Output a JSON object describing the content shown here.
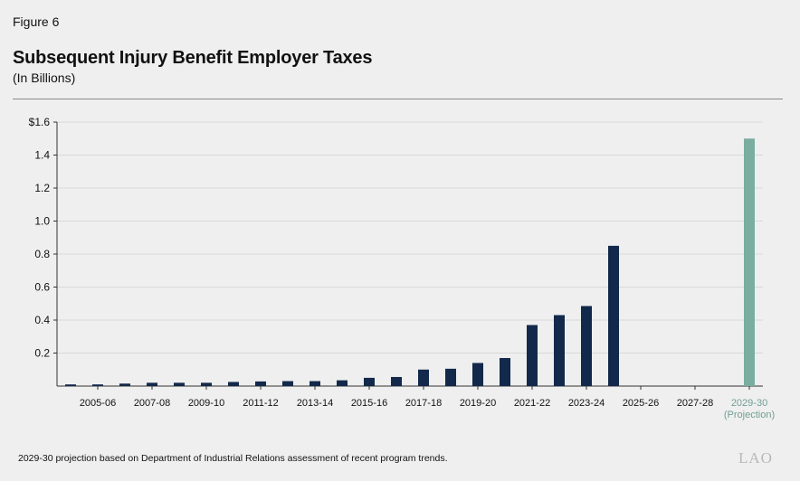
{
  "figure_label": "Figure 6",
  "chart_data": {
    "type": "bar",
    "title": "Subsequent Injury Benefit Employer Taxes",
    "subtitle": "(In Billions)",
    "xlabel": "",
    "ylabel": "",
    "ylim": [
      0,
      1.6
    ],
    "yticks": [
      {
        "value": 0.2,
        "label": "0.2"
      },
      {
        "value": 0.4,
        "label": "0.4"
      },
      {
        "value": 0.6,
        "label": "0.6"
      },
      {
        "value": 0.8,
        "label": "0.8"
      },
      {
        "value": 1.0,
        "label": "1.0"
      },
      {
        "value": 1.2,
        "label": "1.2"
      },
      {
        "value": 1.4,
        "label": "1.4"
      },
      {
        "value": 1.6,
        "label": "$1.6"
      }
    ],
    "categories": [
      "2004-05",
      "2005-06",
      "2006-07",
      "2007-08",
      "2008-09",
      "2009-10",
      "2010-11",
      "2011-12",
      "2012-13",
      "2013-14",
      "2014-15",
      "2015-16",
      "2016-17",
      "2017-18",
      "2018-19",
      "2019-20",
      "2020-21",
      "2021-22",
      "2022-23",
      "2023-24",
      "2024-25",
      "2025-26",
      "2026-27",
      "2027-28",
      "2028-29",
      "2029-30"
    ],
    "values": [
      0.01,
      0.01,
      0.015,
      0.02,
      0.02,
      0.02,
      0.025,
      0.028,
      0.03,
      0.03,
      0.035,
      0.05,
      0.055,
      0.1,
      0.105,
      0.14,
      0.17,
      0.37,
      0.43,
      0.485,
      0.85,
      0,
      0,
      0,
      0,
      1.5
    ],
    "tick_labels": [
      {
        "index": 1,
        "label": "2005-06"
      },
      {
        "index": 3,
        "label": "2007-08"
      },
      {
        "index": 5,
        "label": "2009-10"
      },
      {
        "index": 7,
        "label": "2011-12"
      },
      {
        "index": 9,
        "label": "2013-14"
      },
      {
        "index": 11,
        "label": "2015-16"
      },
      {
        "index": 13,
        "label": "2017-18"
      },
      {
        "index": 15,
        "label": "2019-20"
      },
      {
        "index": 17,
        "label": "2021-22"
      },
      {
        "index": 19,
        "label": "2023-24"
      },
      {
        "index": 21,
        "label": "2025-26"
      },
      {
        "index": 23,
        "label": "2027-28"
      },
      {
        "index": 25,
        "label": "2029-30",
        "sublabel": "(Projection)",
        "projection": true
      }
    ],
    "projection_index": 25,
    "grid": true
  },
  "colors": {
    "actual": "#13294b",
    "projection": "#79ada0",
    "grid": "#d8d8d8",
    "axis": "#333333",
    "projection_label": "#6f9f93"
  },
  "footnote": "2029-30 projection based on Department of Industrial Relations assessment of recent program trends.",
  "logo": "LAO"
}
